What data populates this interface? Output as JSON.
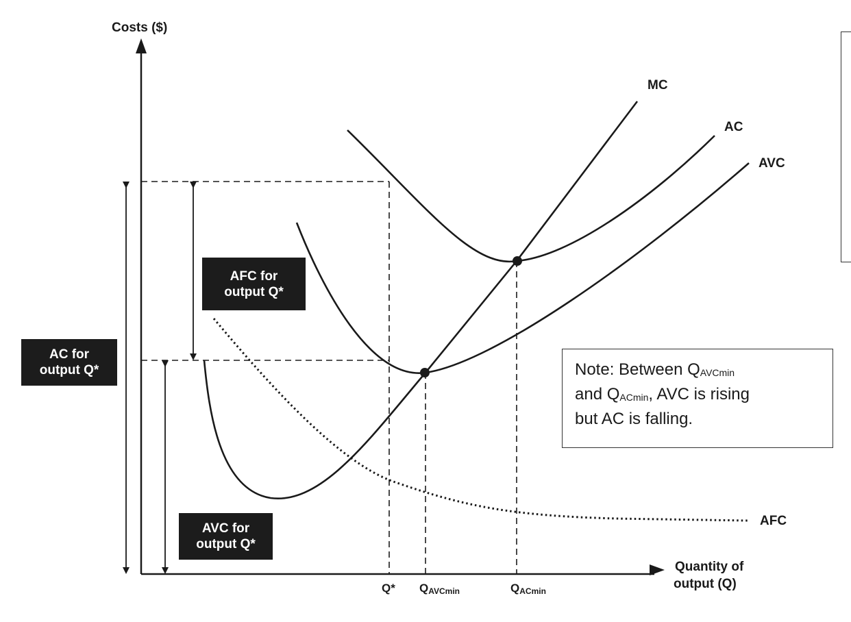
{
  "axes": {
    "y_label": "Costs ($)",
    "x_label_line1": "Quantity of",
    "x_label_line2": "output (Q)"
  },
  "curves": {
    "mc": "MC",
    "ac": "AC",
    "avc": "AVC",
    "afc": "AFC"
  },
  "ticks": {
    "q_star": "Q*",
    "q_avcmin_main": "Q",
    "q_avcmin_sub": "AVCmin",
    "q_acmin_main": "Q",
    "q_acmin_sub": "ACmin"
  },
  "boxes": {
    "afc_line1": "AFC for",
    "afc_line2": "output Q*",
    "ac_line1": "AC for",
    "ac_line2": "output Q*",
    "avc_line1": "AVC for",
    "avc_line2": "output Q*"
  },
  "note": {
    "part1": "Note: Between Q",
    "sub1": "AVCmin",
    "part2": "and Q",
    "sub2": "ACmin",
    "part3": ", AVC is rising",
    "part4": "but AC is falling."
  },
  "colors": {
    "ink": "#1a1a1a",
    "box_fill": "#1c1c1c",
    "box_text": "#ffffff"
  }
}
